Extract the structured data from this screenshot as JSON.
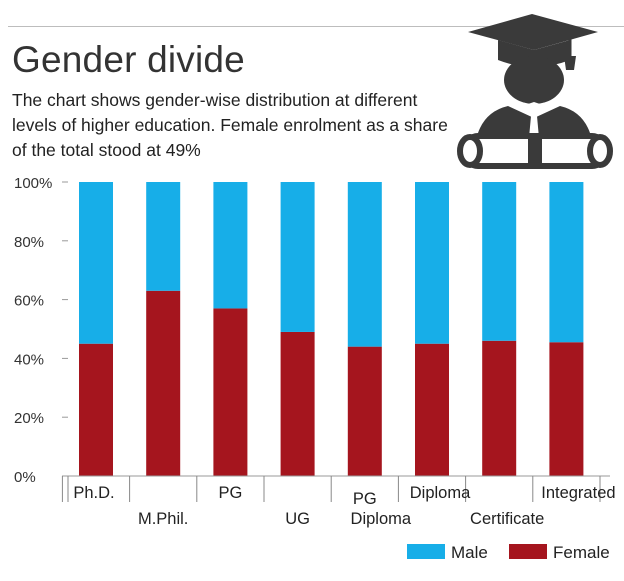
{
  "chart_data": {
    "type": "bar",
    "stacked": true,
    "title": "Gender divide",
    "subtitle": "The chart shows gender-wise distribution at different levels of higher education. Female enrolment as a share of the total stood at 49%",
    "categories": [
      [
        "Ph.D."
      ],
      [
        "M.Phil."
      ],
      [
        "PG"
      ],
      [
        "UG"
      ],
      [
        "PG",
        "Diploma"
      ],
      [
        "Diploma"
      ],
      [
        "Certificate"
      ],
      [
        "Integrated"
      ]
    ],
    "category_label_rows": [
      "top",
      "bottom",
      "top",
      "bottom",
      "split",
      "top",
      "bottom",
      "top"
    ],
    "series": [
      {
        "name": "Female",
        "color": "#a5151e",
        "values": [
          45,
          63,
          57,
          49,
          44,
          45,
          46,
          45.5
        ]
      },
      {
        "name": "Male",
        "color": "#17aee8",
        "values": [
          55,
          37,
          43,
          51,
          56,
          55,
          54,
          54.5
        ]
      }
    ],
    "ylim": [
      0,
      100
    ],
    "yticks": [
      0,
      20,
      40,
      60,
      80,
      100
    ],
    "ytick_labels": [
      "0%",
      "20%",
      "40%",
      "60%",
      "80%",
      "100%"
    ],
    "xlabel": "",
    "ylabel": "",
    "grid": false,
    "legend": {
      "position": "bottom-right",
      "order": [
        "Male",
        "Female"
      ]
    }
  },
  "icon": "graduation-cap-diploma-icon"
}
